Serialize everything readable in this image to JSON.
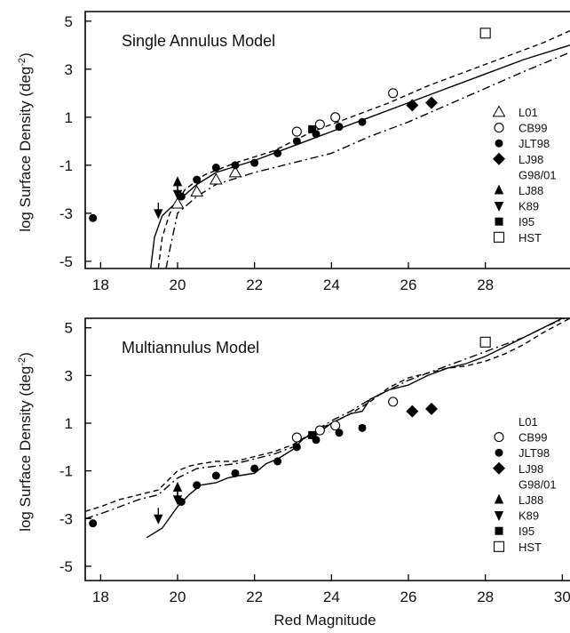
{
  "chart_data": [
    {
      "type": "scatter",
      "title": "Single Annulus Model",
      "xlabel": "",
      "ylabel": "log Surface Density (deg",
      "ylabel_exp": "-2",
      "xlim": [
        17.6,
        30.2
      ],
      "ylim": [
        -5.3,
        5.4
      ],
      "xticks": [
        "18",
        "20",
        "22",
        "24",
        "26",
        "28"
      ],
      "yticks": [
        "5",
        "3",
        "1",
        "-1",
        "-3",
        "-5"
      ],
      "legend": [
        "L01",
        "CB99",
        "JLT98",
        "LJ98",
        "G98/01",
        "LJ88",
        "K89",
        "I95",
        "HST"
      ],
      "series": [
        {
          "name": "L01",
          "marker": "triangle-open",
          "points": [
            [
              20.0,
              -2.6
            ],
            [
              20.5,
              -2.1
            ],
            [
              21.0,
              -1.6
            ],
            [
              21.5,
              -1.3
            ]
          ]
        },
        {
          "name": "JLT98",
          "marker": "circle-filled",
          "points": [
            [
              17.8,
              -3.2
            ],
            [
              20.1,
              -2.3
            ],
            [
              20.5,
              -1.6
            ],
            [
              21.0,
              -1.1
            ],
            [
              21.5,
              -1.0
            ],
            [
              22.0,
              -0.9
            ],
            [
              22.6,
              -0.5
            ],
            [
              23.1,
              0.0
            ],
            [
              23.6,
              0.3
            ],
            [
              24.2,
              0.6
            ],
            [
              24.8,
              0.8
            ]
          ]
        },
        {
          "name": "LJ98",
          "marker": "diamond-filled",
          "points": [
            [
              26.1,
              1.5
            ],
            [
              26.6,
              1.6
            ]
          ]
        },
        {
          "name": "CB99",
          "marker": "circle-open",
          "points": [
            [
              23.1,
              0.4
            ],
            [
              23.7,
              0.7
            ],
            [
              24.1,
              1.0
            ],
            [
              25.6,
              2.0
            ]
          ]
        },
        {
          "name": "LJ88",
          "marker": "triangle-filled",
          "points": [
            [
              20.0,
              -1.7
            ]
          ]
        },
        {
          "name": "K89",
          "marker": "triangle-down-filled",
          "points": [
            [
              19.5,
              -3.0
            ],
            [
              20.0,
              -2.2
            ]
          ]
        },
        {
          "name": "I95",
          "marker": "square-filled",
          "points": [
            [
              23.5,
              0.5
            ]
          ]
        },
        {
          "name": "HST",
          "marker": "square-open",
          "points": [
            [
              28.0,
              4.5
            ]
          ]
        }
      ],
      "model_curves": [
        {
          "style": "solid",
          "points": [
            [
              19.3,
              -5.3
            ],
            [
              19.4,
              -4.0
            ],
            [
              19.6,
              -3.1
            ],
            [
              20.0,
              -2.5
            ],
            [
              20.5,
              -1.8
            ],
            [
              21.0,
              -1.3
            ],
            [
              22.0,
              -0.8
            ],
            [
              23.0,
              -0.2
            ],
            [
              24.0,
              0.4
            ],
            [
              25.0,
              1.0
            ],
            [
              26.0,
              1.6
            ],
            [
              27.0,
              2.2
            ],
            [
              28.0,
              2.8
            ],
            [
              29.0,
              3.4
            ],
            [
              30.2,
              4.0
            ]
          ]
        },
        {
          "style": "dashed",
          "points": [
            [
              19.5,
              -5.3
            ],
            [
              19.6,
              -4.0
            ],
            [
              19.8,
              -3.0
            ],
            [
              20.2,
              -2.0
            ],
            [
              20.7,
              -1.4
            ],
            [
              21.5,
              -0.9
            ],
            [
              22.5,
              -0.4
            ],
            [
              23.5,
              0.4
            ],
            [
              24.5,
              1.0
            ],
            [
              25.5,
              1.6
            ],
            [
              26.5,
              2.3
            ],
            [
              27.5,
              2.9
            ],
            [
              28.5,
              3.5
            ],
            [
              29.5,
              4.1
            ],
            [
              30.2,
              4.6
            ]
          ]
        },
        {
          "style": "dashdot",
          "points": [
            [
              19.7,
              -5.3
            ],
            [
              19.8,
              -4.5
            ],
            [
              20.0,
              -3.0
            ],
            [
              20.5,
              -2.3
            ],
            [
              21.0,
              -1.8
            ],
            [
              22.0,
              -1.3
            ],
            [
              23.0,
              -0.9
            ],
            [
              24.0,
              -0.5
            ],
            [
              25.0,
              0.2
            ],
            [
              26.0,
              0.8
            ],
            [
              27.0,
              1.5
            ],
            [
              28.0,
              2.2
            ],
            [
              29.0,
              2.9
            ],
            [
              30.2,
              3.7
            ]
          ]
        }
      ]
    },
    {
      "type": "scatter",
      "title": "Multiannulus Model",
      "xlabel": "Red Magnitude",
      "ylabel": "log Surface Density (deg",
      "ylabel_exp": "-2",
      "xlim": [
        17.6,
        30.2
      ],
      "ylim": [
        -5.6,
        5.4
      ],
      "xticks": [
        "18",
        "20",
        "22",
        "24",
        "26",
        "28",
        "30"
      ],
      "yticks": [
        "5",
        "3",
        "1",
        "-1",
        "-3",
        "-5"
      ],
      "legend": [
        "L01",
        "CB99",
        "JLT98",
        "LJ98",
        "G98/01",
        "LJ88",
        "K89",
        "I95",
        "HST"
      ],
      "series": [
        {
          "name": "JLT98",
          "marker": "circle-filled",
          "points": [
            [
              17.8,
              -3.2
            ],
            [
              20.1,
              -2.3
            ],
            [
              20.5,
              -1.6
            ],
            [
              21.0,
              -1.2
            ],
            [
              21.5,
              -1.1
            ],
            [
              22.0,
              -0.9
            ],
            [
              22.6,
              -0.6
            ],
            [
              23.1,
              0.0
            ],
            [
              23.6,
              0.3
            ],
            [
              24.2,
              0.6
            ],
            [
              24.8,
              0.8
            ]
          ]
        },
        {
          "name": "LJ98",
          "marker": "diamond-filled",
          "points": [
            [
              26.1,
              1.5
            ],
            [
              26.6,
              1.6
            ]
          ]
        },
        {
          "name": "CB99",
          "marker": "circle-open",
          "points": [
            [
              23.1,
              0.4
            ],
            [
              23.7,
              0.7
            ],
            [
              24.1,
              0.9
            ],
            [
              25.6,
              1.9
            ]
          ]
        },
        {
          "name": "LJ88",
          "marker": "triangle-filled",
          "points": [
            [
              20.0,
              -1.7
            ]
          ]
        },
        {
          "name": "K89",
          "marker": "triangle-down-filled",
          "points": [
            [
              19.5,
              -3.0
            ],
            [
              20.0,
              -2.2
            ]
          ]
        },
        {
          "name": "I95",
          "marker": "square-filled",
          "points": [
            [
              23.5,
              0.5
            ]
          ]
        },
        {
          "name": "HST",
          "marker": "square-open",
          "points": [
            [
              28.0,
              4.4
            ]
          ]
        }
      ],
      "model_curves": [
        {
          "style": "solid",
          "points": [
            [
              19.2,
              -3.8
            ],
            [
              19.6,
              -3.4
            ],
            [
              20.0,
              -2.5
            ],
            [
              20.3,
              -2.0
            ],
            [
              20.6,
              -1.6
            ],
            [
              21.0,
              -1.5
            ],
            [
              21.3,
              -1.3
            ],
            [
              21.6,
              -1.2
            ],
            [
              22.0,
              -1.1
            ],
            [
              22.3,
              -0.7
            ],
            [
              22.6,
              -0.5
            ],
            [
              23.0,
              -0.1
            ],
            [
              23.3,
              0.4
            ],
            [
              23.6,
              0.5
            ],
            [
              24.0,
              1.0
            ],
            [
              24.5,
              1.4
            ],
            [
              24.8,
              1.5
            ],
            [
              25.0,
              2.0
            ],
            [
              25.5,
              2.4
            ],
            [
              26.0,
              2.6
            ],
            [
              26.5,
              3.0
            ],
            [
              27.0,
              3.3
            ],
            [
              27.5,
              3.5
            ],
            [
              28.0,
              3.8
            ],
            [
              28.5,
              4.2
            ],
            [
              29.0,
              4.6
            ],
            [
              29.5,
              5.0
            ],
            [
              30.0,
              5.4
            ]
          ]
        },
        {
          "style": "dashed",
          "points": [
            [
              17.6,
              -2.7
            ],
            [
              18.0,
              -2.5
            ],
            [
              18.5,
              -2.2
            ],
            [
              19.0,
              -2.0
            ],
            [
              19.5,
              -1.8
            ],
            [
              20.0,
              -1.0
            ],
            [
              20.3,
              -0.8
            ],
            [
              20.6,
              -0.7
            ],
            [
              21.0,
              -0.6
            ],
            [
              21.5,
              -0.6
            ],
            [
              22.0,
              -0.4
            ],
            [
              22.5,
              -0.2
            ],
            [
              23.0,
              0.1
            ],
            [
              23.5,
              0.6
            ],
            [
              24.0,
              1.0
            ],
            [
              24.5,
              1.4
            ],
            [
              25.0,
              1.9
            ],
            [
              25.5,
              2.5
            ],
            [
              26.0,
              2.9
            ],
            [
              26.5,
              3.1
            ],
            [
              27.0,
              3.3
            ],
            [
              27.5,
              3.4
            ],
            [
              28.0,
              3.6
            ],
            [
              28.5,
              3.9
            ],
            [
              29.0,
              4.3
            ],
            [
              29.5,
              4.8
            ],
            [
              30.2,
              5.4
            ]
          ]
        },
        {
          "style": "dashdot",
          "points": [
            [
              17.6,
              -3.0
            ],
            [
              18.0,
              -2.8
            ],
            [
              18.5,
              -2.5
            ],
            [
              19.0,
              -2.2
            ],
            [
              19.5,
              -2.0
            ],
            [
              20.0,
              -1.3
            ],
            [
              20.5,
              -0.9
            ],
            [
              21.0,
              -0.8
            ],
            [
              21.5,
              -0.7
            ],
            [
              22.0,
              -0.5
            ],
            [
              22.5,
              -0.3
            ],
            [
              23.0,
              0.0
            ],
            [
              23.5,
              0.6
            ],
            [
              24.0,
              1.1
            ],
            [
              24.5,
              1.5
            ],
            [
              25.0,
              2.0
            ],
            [
              25.5,
              2.4
            ],
            [
              26.0,
              2.8
            ],
            [
              26.5,
              3.1
            ],
            [
              27.0,
              3.4
            ],
            [
              27.5,
              3.7
            ],
            [
              28.0,
              4.0
            ],
            [
              28.5,
              4.3
            ],
            [
              29.0,
              4.6
            ],
            [
              29.5,
              5.0
            ],
            [
              30.2,
              5.5
            ]
          ]
        }
      ]
    }
  ]
}
